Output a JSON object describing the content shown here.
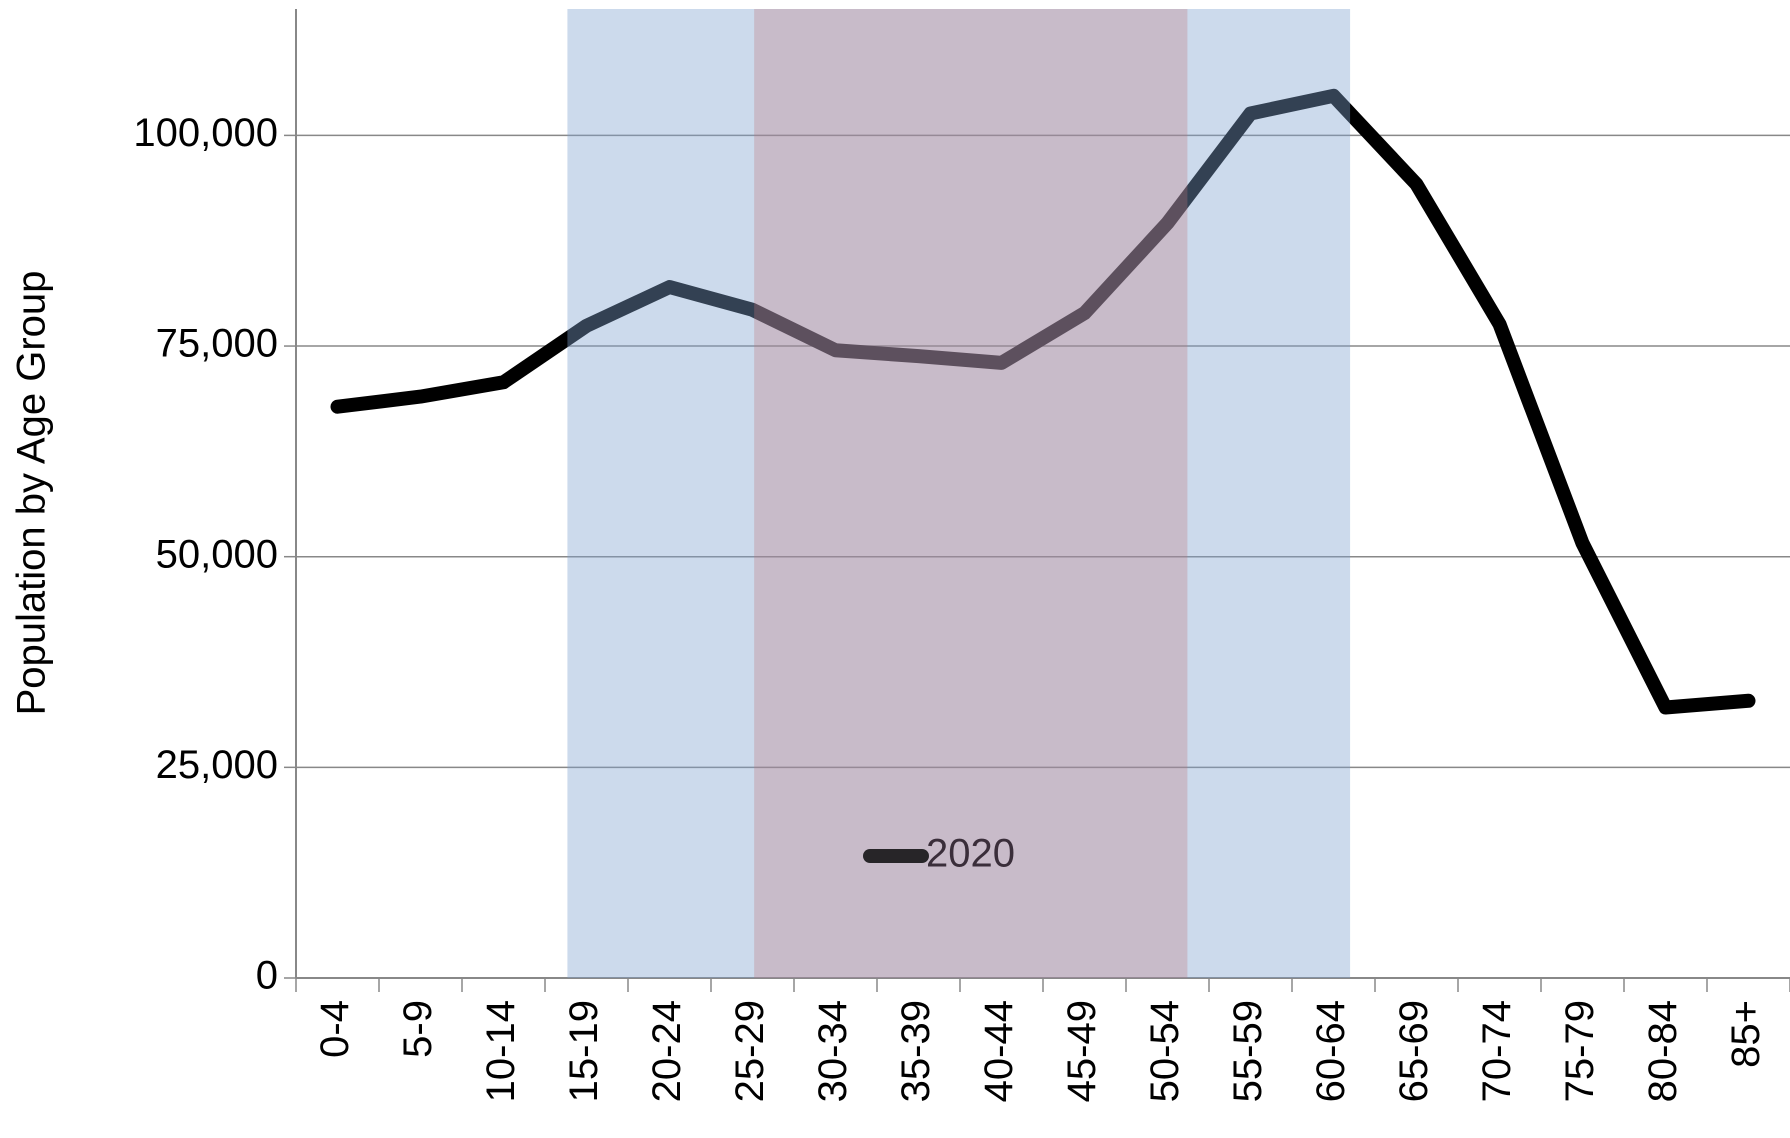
{
  "chart_data": {
    "type": "line",
    "y_label": "Population by Age Group",
    "categories": [
      "0-4",
      "5-9",
      "10-14",
      "15-19",
      "20-24",
      "25-29",
      "30-34",
      "35-39",
      "40-44",
      "45-49",
      "50-54",
      "55-59",
      "60-64",
      "65-69",
      "70-74",
      "75-79",
      "80-84",
      "85+"
    ],
    "series": [
      {
        "name": "2020",
        "color": "#000000",
        "values": [
          67800,
          69000,
          70700,
          77400,
          82000,
          79300,
          74500,
          73800,
          73000,
          78900,
          89600,
          102600,
          104700,
          94200,
          77600,
          51600,
          32100,
          32900
        ]
      }
    ],
    "ylim": [
      0,
      115000
    ],
    "yticks": [
      0,
      {
        "value": 25000,
        "label": "25,000"
      },
      {
        "value": 50000,
        "label": "50,000"
      },
      {
        "value": 75000,
        "label": "75,000"
      },
      {
        "value": 100000,
        "label": "100,000"
      }
    ],
    "grid": true
  }
}
